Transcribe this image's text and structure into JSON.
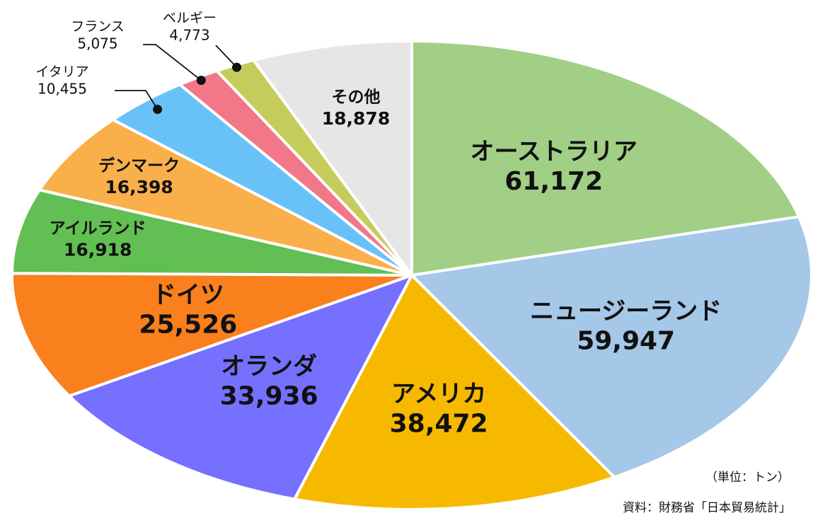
{
  "colors": {
    "オーストラリア": "#a1cf86",
    "ニュージーランド": "#a5c7e8",
    "アメリカ": "#f7b900",
    "オランダ": "#7670ff",
    "ドイツ": "#f9801c",
    "アイルランド": "#62bf53",
    "デンマーク": "#f9b04a",
    "イタリア": "#69c2f7",
    "フランス": "#f27788",
    "ベルギー": "#c6cc5c",
    "その他": "#e6e6e6",
    "border": "#ffffff",
    "text": "#111111"
  },
  "notes": {
    "unit": "（単位：トン）",
    "source": "資料：財務省「日本貿易統計」"
  },
  "chart_data": {
    "type": "pie",
    "title": "",
    "unit": "トン",
    "start_angle_deg": 0,
    "direction": "clockwise",
    "slices": [
      {
        "label": "オーストラリア",
        "value": 61172,
        "value_label": "61,172",
        "size": "large",
        "callout": false
      },
      {
        "label": "ニュージーランド",
        "value": 59947,
        "value_label": "59,947",
        "size": "large",
        "callout": false
      },
      {
        "label": "アメリカ",
        "value": 38472,
        "value_label": "38,472",
        "size": "large",
        "callout": false
      },
      {
        "label": "オランダ",
        "value": 33936,
        "value_label": "33,936",
        "size": "large",
        "callout": false
      },
      {
        "label": "ドイツ",
        "value": 25526,
        "value_label": "25,526",
        "size": "large",
        "callout": false
      },
      {
        "label": "アイルランド",
        "value": 16918,
        "value_label": "16,918",
        "size": "medium",
        "callout": false
      },
      {
        "label": "デンマーク",
        "value": 16398,
        "value_label": "16,398",
        "size": "medium",
        "callout": false
      },
      {
        "label": "イタリア",
        "value": 10455,
        "value_label": "10,455",
        "size": "small",
        "callout": true
      },
      {
        "label": "フランス",
        "value": 5075,
        "value_label": "5,075",
        "size": "small",
        "callout": true
      },
      {
        "label": "ベルギー",
        "value": 4773,
        "value_label": "4,773",
        "size": "small",
        "callout": true
      },
      {
        "label": "その他",
        "value": 18878,
        "value_label": "18,878",
        "size": "medium",
        "callout": false
      }
    ]
  }
}
